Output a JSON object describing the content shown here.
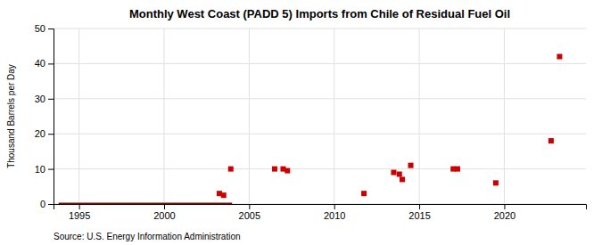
{
  "chart_data": {
    "type": "scatter",
    "title": "Monthly West Coast (PADD 5) Imports from Chile of Residual Fuel Oil",
    "ylabel": "Thousand Barrels per Day",
    "source": "Source: U.S. Energy Information Administration",
    "xlim": [
      1993.5,
      2024.8
    ],
    "ylim": [
      0,
      50
    ],
    "xticks": [
      1995,
      2000,
      2005,
      2010,
      2015,
      2020
    ],
    "yticks": [
      0,
      10,
      20,
      30,
      40,
      50
    ],
    "grid": true,
    "series": [
      {
        "type": "line",
        "color": "#8b0000",
        "x": [
          1993.8,
          2004.0
        ],
        "values": [
          0,
          0
        ]
      },
      {
        "type": "scatter",
        "marker": "square",
        "color": "#cc0000",
        "x": [
          2003.25,
          2003.5,
          2003.92,
          2006.5,
          2007.0,
          2007.25,
          2011.75,
          2013.5,
          2013.83,
          2014.0,
          2014.5,
          2017.0,
          2017.25,
          2019.5,
          2022.75,
          2023.25
        ],
        "values": [
          3.0,
          2.5,
          10.0,
          10.0,
          10.0,
          9.5,
          3.0,
          9.0,
          8.5,
          7.0,
          11.0,
          10.0,
          10.0,
          6.0,
          18.0,
          42.0
        ]
      }
    ]
  }
}
